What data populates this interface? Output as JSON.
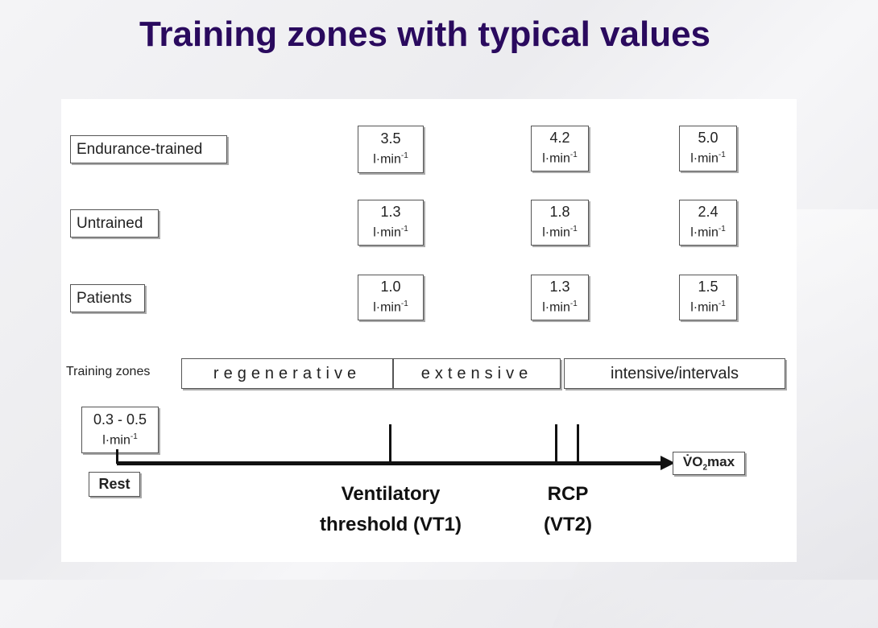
{
  "title": "Training zones with typical values",
  "rows": [
    {
      "label": "Endurance-trained",
      "values": [
        "3.5",
        "4.2",
        "5.0"
      ]
    },
    {
      "label": "Untrained",
      "values": [
        "1.3",
        "1.8",
        "2.4"
      ]
    },
    {
      "label": "Patients",
      "values": [
        "1.0",
        "1.3",
        "1.5"
      ]
    }
  ],
  "unit_base": "l·min",
  "unit_exp": "-1",
  "zones_label": "Training zones",
  "zones": [
    "regenerative",
    "extensive",
    "intensive/intervals"
  ],
  "rest": {
    "value": "0.3 - 0.5",
    "label": "Rest"
  },
  "vo2max": {
    "prefix": "V̇O",
    "sub": "2",
    "suffix": "max"
  },
  "markers": [
    {
      "line1": "Ventilatory",
      "line2": "threshold (VT1)"
    },
    {
      "line1": "RCP",
      "line2": "(VT2)"
    }
  ]
}
